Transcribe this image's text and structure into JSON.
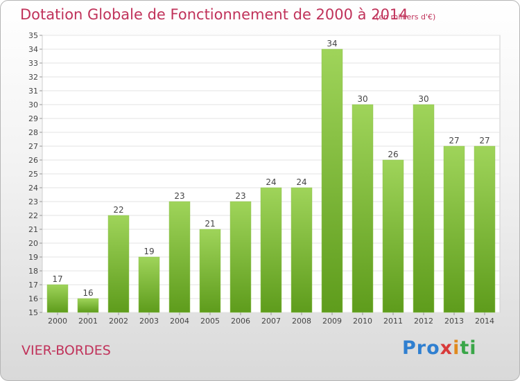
{
  "title": "Dotation Globale de Fonctionnement de 2000 à 2014",
  "unit": "(en milliers d'€)",
  "commune": "VIER-BORDES",
  "logo": {
    "text": "Proxiti",
    "colors": [
      "#2f7fd0",
      "#e08a1e",
      "#d83a3a",
      "#3aa648"
    ]
  },
  "colors": {
    "title": "#c0325a",
    "bar_light": "#9fd45a",
    "bar_dark": "#5e9c1c"
  },
  "chart_data": {
    "type": "bar",
    "title": "Dotation Globale de Fonctionnement de 2000 à 2014",
    "subtitle": "(en milliers d'€)",
    "xlabel": "",
    "ylabel": "",
    "categories": [
      "2000",
      "2001",
      "2002",
      "2003",
      "2004",
      "2005",
      "2006",
      "2007",
      "2008",
      "2009",
      "2010",
      "2011",
      "2012",
      "2013",
      "2014"
    ],
    "values": [
      17,
      16,
      22,
      19,
      23,
      21,
      23,
      24,
      24,
      34,
      30,
      26,
      30,
      27,
      27
    ],
    "ylim": [
      15,
      35
    ],
    "yticks": [
      15,
      16,
      17,
      18,
      19,
      20,
      21,
      22,
      23,
      24,
      25,
      26,
      27,
      28,
      29,
      30,
      31,
      32,
      33,
      34,
      35
    ],
    "grid": true
  }
}
